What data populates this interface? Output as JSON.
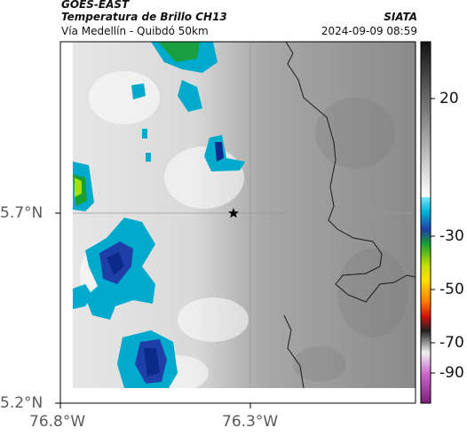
{
  "header": {
    "satellite": "GOES-EAST",
    "product": "Temperatura de Brillo CH13",
    "route": "Vía Medellín - Quibdó 50km",
    "organization": "SIATA",
    "timestamp": "2024-09-09 08:59"
  },
  "axes": {
    "y_ticks": [
      "5.7°N",
      "5.2°N"
    ],
    "x_ticks": [
      "76.8°W",
      "76.3°W"
    ]
  },
  "colorbar": {
    "ticks": [
      "20",
      "-30",
      "-50",
      "-70",
      "-90"
    ]
  },
  "colors": {
    "frame": "#000000",
    "cold_cloud": "#00aacc",
    "deep_convection": "#0b2a8a",
    "overshoot": "#20b040"
  },
  "map": {
    "marker_icon": "star-icon"
  }
}
